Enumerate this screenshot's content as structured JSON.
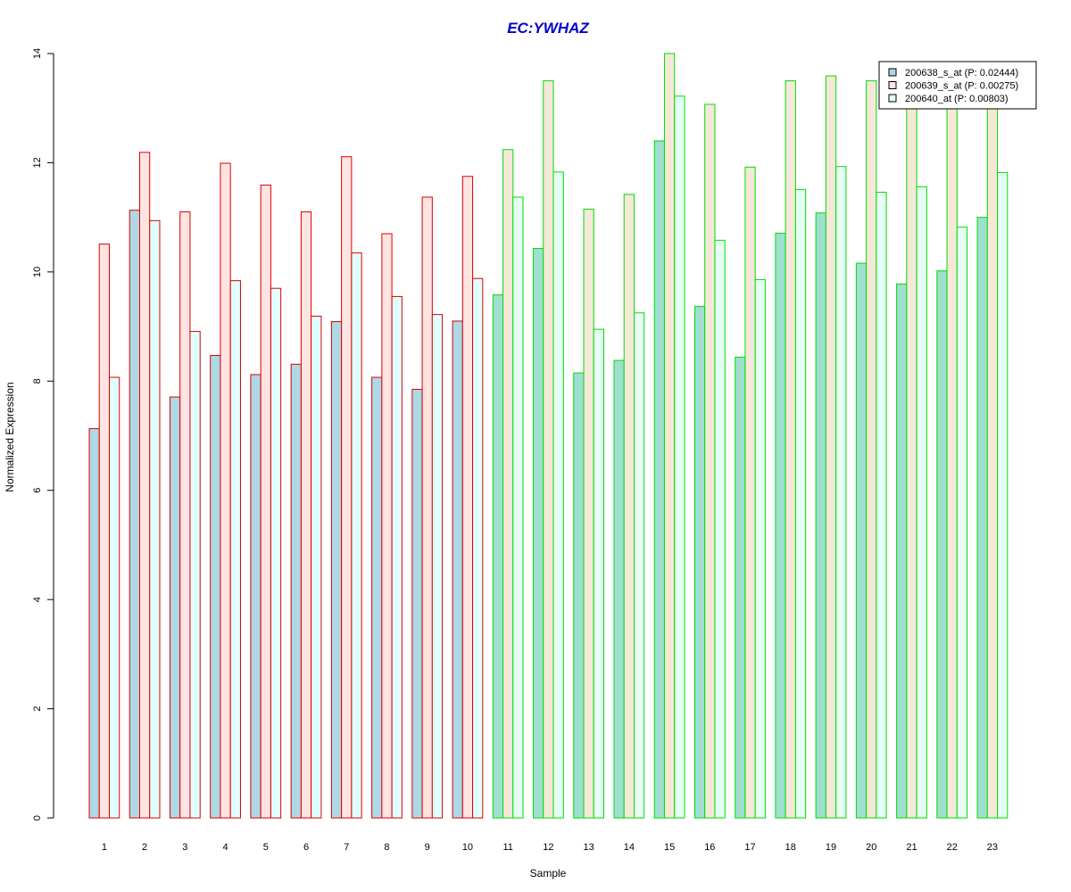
{
  "chart_data": {
    "type": "bar",
    "title": "EC:YWHAZ",
    "xlabel": "Sample",
    "ylabel": "Normalized Expression",
    "ylim": [
      0,
      14
    ],
    "yticks": [
      0,
      2,
      4,
      6,
      8,
      10,
      12,
      14
    ],
    "categories": [
      "1",
      "2",
      "3",
      "4",
      "5",
      "6",
      "7",
      "8",
      "9",
      "10",
      "11",
      "12",
      "13",
      "14",
      "15",
      "16",
      "17",
      "18",
      "19",
      "20",
      "21",
      "22",
      "23"
    ],
    "group_1_count": 10,
    "group_colors": {
      "group_1_border": "#dd0000",
      "group_2_border": "#00dd00"
    },
    "title_color": "#0000cc",
    "legend_position": "top-right",
    "series": [
      {
        "name": "200638_s_at (P: 0.02444)",
        "fill_group_1": "#add8e6",
        "fill_group_2": "#9fdfd0",
        "values": [
          7.13,
          11.13,
          7.71,
          8.47,
          8.12,
          8.31,
          9.09,
          8.07,
          7.85,
          9.1,
          9.58,
          10.43,
          8.15,
          8.38,
          12.4,
          9.37,
          8.44,
          10.71,
          11.08,
          10.16,
          9.78,
          10.02,
          11.0
        ]
      },
      {
        "name": "200639_s_at (P: 0.00275)",
        "fill_group_1": "#ffe4e1",
        "fill_group_2": "#f5e8d9",
        "values": [
          10.51,
          12.19,
          11.1,
          11.99,
          11.59,
          11.1,
          12.11,
          10.7,
          11.37,
          11.75,
          12.24,
          13.5,
          11.15,
          11.42,
          14.0,
          13.07,
          11.92,
          13.5,
          13.59,
          13.5,
          13.12,
          13.03,
          13.07
        ]
      },
      {
        "name": "200640_at (P: 0.00803)",
        "fill_group_1": "#e0ffff",
        "fill_group_2": "#e6fff4",
        "values": [
          8.07,
          10.94,
          8.91,
          9.84,
          9.7,
          9.19,
          10.35,
          9.55,
          9.22,
          9.88,
          11.37,
          11.83,
          8.95,
          9.25,
          13.22,
          10.58,
          9.86,
          11.51,
          11.93,
          11.46,
          11.56,
          10.82,
          11.82
        ]
      }
    ],
    "legend_fills": [
      "#add8e6",
      "#ffe4e1",
      "#e0ffff"
    ]
  }
}
